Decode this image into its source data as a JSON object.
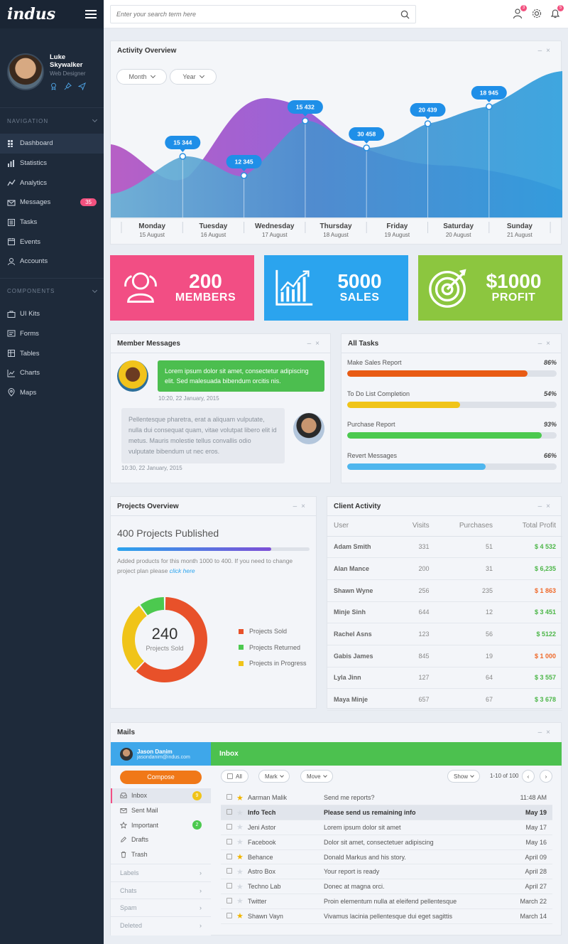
{
  "app": {
    "brand": "indus"
  },
  "user": {
    "name": "Luke Skywalker",
    "role": "Web Designer"
  },
  "nav": {
    "navigation_label": "NAVIGATION",
    "items": [
      {
        "label": "Dashboard",
        "icon": "grid-icon",
        "active": true
      },
      {
        "label": "Statistics",
        "icon": "bar-chart-icon"
      },
      {
        "label": "Analytics",
        "icon": "trend-line-icon"
      },
      {
        "label": "Messages",
        "icon": "envelope-icon",
        "badge": "35"
      },
      {
        "label": "Tasks",
        "icon": "task-list-icon"
      },
      {
        "label": "Events",
        "icon": "calendar-icon"
      },
      {
        "label": "Accounts",
        "icon": "users-icon"
      }
    ],
    "components_label": "COMPONENTS",
    "components": [
      {
        "label": "UI Kits",
        "icon": "briefcase-icon"
      },
      {
        "label": "Forms",
        "icon": "form-icon"
      },
      {
        "label": "Tables",
        "icon": "table-icon"
      },
      {
        "label": "Charts",
        "icon": "chart-icon"
      },
      {
        "label": "Maps",
        "icon": "map-pin-icon"
      }
    ]
  },
  "topbar": {
    "search_placeholder": "Enter your search term here",
    "user_badge": "3",
    "notif_badge": "5"
  },
  "activity": {
    "title": "Activity Overview",
    "filter_month": "Month",
    "filter_year": "Year"
  },
  "chart_data": {
    "type": "area",
    "categories": [
      "Monday",
      "Tuesday",
      "Wednesday",
      "Thursday",
      "Friday",
      "Saturday",
      "Sunday"
    ],
    "dates": [
      "15 August",
      "16 August",
      "17 August",
      "18 August",
      "19 August",
      "20 August",
      "21 August"
    ],
    "point_labels": [
      "15 344",
      "12 345",
      "15 432",
      "30 458",
      "20 439",
      "18 945"
    ],
    "point_days": [
      "Tuesday",
      "Wednesday",
      "Thursday",
      "Friday",
      "Saturday",
      "Sunday"
    ],
    "colors": {
      "front": "#3aa8d9",
      "back": "#9b4dd6"
    }
  },
  "stats": [
    {
      "value": "200",
      "label": "MEMBERS",
      "color": "#f24e84",
      "icon": "user-group-icon"
    },
    {
      "value": "5000",
      "label": "SALES",
      "color": "#2ba4ee",
      "icon": "growth-chart-icon"
    },
    {
      "value": "$1000",
      "label": "PROFIT",
      "color": "#8cc63f",
      "icon": "target-icon"
    }
  ],
  "messages": {
    "title": "Member Messages",
    "items": [
      {
        "text": "Lorem ipsum dolor sit amet, consectetur adipiscing elit. Sed malesuada bibendum orcitis nis.",
        "time": "10:20, 22 January, 2015"
      },
      {
        "text": "Pellentesque pharetra, erat a aliquam vulputate, nulla dui consequat quam, vitae volutpat libero elit id metus. Mauris molestie tellus convallis odio vulputate bibendum ut nec eros.",
        "time": "10:30, 22 January, 2015"
      }
    ]
  },
  "tasks": {
    "title": "All Tasks",
    "items": [
      {
        "name": "Make Sales Report",
        "percent": "86%",
        "value": 0.86,
        "color": "#e85b14"
      },
      {
        "name": "To Do List Completion",
        "percent": "54%",
        "value": 0.54,
        "color": "#f0c419"
      },
      {
        "name": "Purchase Report",
        "percent": "93%",
        "value": 0.93,
        "color": "#4cc94f"
      },
      {
        "name": "Revert Messages",
        "percent": "66%",
        "value": 0.66,
        "color": "#4fb6ee"
      }
    ]
  },
  "projects": {
    "title": "Projects Overview",
    "headline": "400 Projects Published",
    "progress": 0.8,
    "desc": "Added products for this month 1000 to 400. If you need to change project plan please",
    "link": "click here",
    "donut_value": "240",
    "donut_label": "Projects Sold",
    "legend": [
      {
        "name": "Projects Sold",
        "color": "#e8512a",
        "share": 0.62
      },
      {
        "name": "Projects Returned",
        "color": "#4cc94f",
        "share": 0.1
      },
      {
        "name": "Projects in Progress",
        "color": "#f0c419",
        "share": 0.28
      }
    ]
  },
  "client": {
    "title": "Client Activity",
    "headers": [
      "User",
      "Visits",
      "Purchases",
      "Total Profit"
    ],
    "rows": [
      {
        "user": "Adam Smith",
        "visits": "331",
        "purchases": "51",
        "profit": "$ 4 532",
        "color": "#4cb648"
      },
      {
        "user": "Alan Mance",
        "visits": "200",
        "purchases": "31",
        "profit": "$ 6,235",
        "color": "#4cb648"
      },
      {
        "user": "Shawn Wyne",
        "visits": "256",
        "purchases": "235",
        "profit": "$ 1 863",
        "color": "#ef6a2b"
      },
      {
        "user": "Minje Sinh",
        "visits": "644",
        "purchases": "12",
        "profit": "$ 3 451",
        "color": "#4cb648"
      },
      {
        "user": "Rachel Asns",
        "visits": "123",
        "purchases": "56",
        "profit": "$ 5122",
        "color": "#4cb648"
      },
      {
        "user": "Gabis James",
        "visits": "845",
        "purchases": "19",
        "profit": "$ 1 000",
        "color": "#ef6a2b"
      },
      {
        "user": "Lyla Jinn",
        "visits": "127",
        "purchases": "64",
        "profit": "$ 3 557",
        "color": "#4cb648"
      },
      {
        "user": "Maya Minje",
        "visits": "657",
        "purchases": "67",
        "profit": "$ 3 678",
        "color": "#4cb648"
      }
    ]
  },
  "mails": {
    "title": "Mails",
    "account_name": "Jason Danim",
    "account_email": "jasondanim@indus.com",
    "compose": "Compose",
    "folders": [
      {
        "label": "Inbox",
        "icon": "inbox-icon",
        "badge": "9",
        "badge_color": "#f0c419",
        "active": true
      },
      {
        "label": "Sent Mail",
        "icon": "sent-mail-icon"
      },
      {
        "label": "Important",
        "icon": "star-icon",
        "badge": "2",
        "badge_color": "#4cc94f"
      },
      {
        "label": "Drafts",
        "icon": "drafts-icon"
      },
      {
        "label": "Trash",
        "icon": "trash-icon"
      }
    ],
    "subsections": [
      "Labels",
      "Chats",
      "Spam",
      "Deleted"
    ],
    "inbox_title": "Inbox",
    "toolbar": {
      "all": "All",
      "mark": "Mark",
      "move": "Move",
      "show": "Show",
      "pager": "1-10 of 100"
    },
    "rows": [
      {
        "from": "Aarman Malik",
        "subject": "Send me reports?",
        "date": "11:48 AM",
        "starred": true,
        "unread": false
      },
      {
        "from": "Info Tech",
        "subject": "Please send us remaining info",
        "date": "May 19",
        "starred": false,
        "unread": true
      },
      {
        "from": "Jeni Astor",
        "subject": "Lorem ipsum dolor sit amet",
        "date": "May 17",
        "starred": false,
        "unread": false
      },
      {
        "from": "Facebook",
        "subject": "Dolor sit amet, consectetuer adipiscing",
        "date": "May 16",
        "starred": false,
        "unread": false
      },
      {
        "from": "Behance",
        "subject": "Donald Markus and his story.",
        "date": "April 09",
        "starred": true,
        "unread": false
      },
      {
        "from": "Astro Box",
        "subject": "Your report is ready",
        "date": "April 28",
        "starred": false,
        "unread": false
      },
      {
        "from": "Techno Lab",
        "subject": "Donec at magna orci.",
        "date": "April 27",
        "starred": false,
        "unread": false
      },
      {
        "from": "Twitter",
        "subject": "Proin elementum nulla at eleifend pellentesque",
        "date": "March 22",
        "starred": false,
        "unread": false
      },
      {
        "from": "Shawn Vayn",
        "subject": "Vivamus lacinia pellentesque dui eget sagittis",
        "date": "March 14",
        "starred": true,
        "unread": false
      }
    ]
  }
}
